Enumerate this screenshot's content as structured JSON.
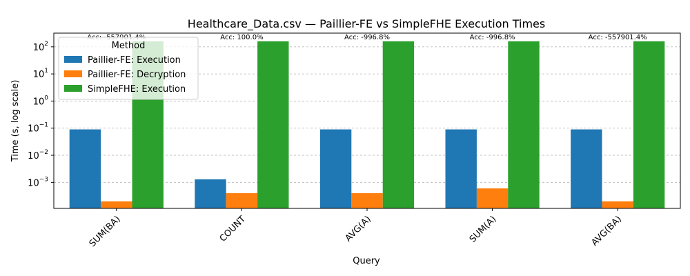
{
  "chart_data": {
    "type": "bar",
    "title": "Healthcare_Data.csv — Paillier-FE vs SimpleFHE Execution Times",
    "xlabel": "Query",
    "ylabel": "Time (s, log scale)",
    "yscale": "log",
    "ylim": [
      0.00011,
      320
    ],
    "categories": [
      "SUM(BA)",
      "COUNT",
      "AVG(A)",
      "SUM(A)",
      "AVG(BA)"
    ],
    "series": [
      {
        "name": "Paillier-FE: Execution",
        "color": "#1f77b4",
        "values": [
          0.09,
          0.0013,
          0.09,
          0.09,
          0.09
        ]
      },
      {
        "name": "Paillier-FE: Decryption",
        "color": "#ff7f0e",
        "values": [
          0.0002,
          0.0004,
          0.0004,
          0.0006,
          0.0002
        ]
      },
      {
        "name": "SimpleFHE: Execution",
        "color": "#2ca02c",
        "values": [
          160,
          160,
          160,
          160,
          160
        ]
      }
    ],
    "annotations": [
      "Acc: -557901.4%",
      "Acc: 100.0%",
      "Acc: -996.8%",
      "Acc: -996.8%",
      "Acc: -557901.4%"
    ],
    "yticks": [
      {
        "value": 0.001,
        "base": "10",
        "exp": "−3"
      },
      {
        "value": 0.01,
        "base": "10",
        "exp": "−2"
      },
      {
        "value": 0.1,
        "base": "10",
        "exp": "−1"
      },
      {
        "value": 1,
        "base": "10",
        "exp": "0"
      },
      {
        "value": 10,
        "base": "10",
        "exp": "1"
      },
      {
        "value": 100,
        "base": "10",
        "exp": "2"
      }
    ],
    "legend": {
      "title": "Method",
      "position": "upper-left"
    },
    "grid": {
      "y": true,
      "x": false
    }
  }
}
